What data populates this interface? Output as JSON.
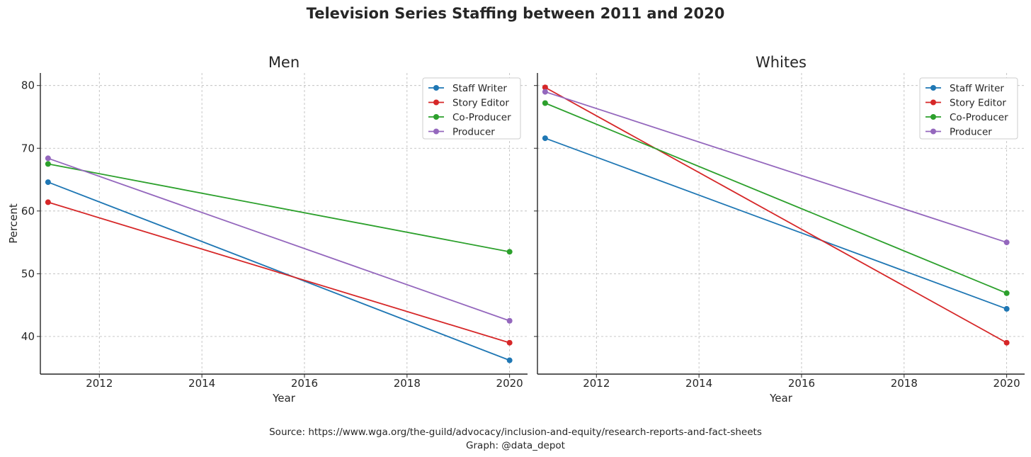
{
  "suptitle": "Television Series Staffing between 2011 and 2020",
  "footer": {
    "source": "Source: https://www.wga.org/the-guild/advocacy/inclusion-and-equity/research-reports-and-fact-sheets",
    "credit": "Graph: @data_depot"
  },
  "chart_data": [
    {
      "type": "line",
      "title": "Men",
      "xlabel": "Year",
      "ylabel": "Percent",
      "xlim": [
        2010.85,
        2020.35
      ],
      "ylim": [
        34,
        82
      ],
      "xticks": [
        2012,
        2014,
        2016,
        2018,
        2020
      ],
      "yticks": [
        40,
        50,
        60,
        70,
        80
      ],
      "grid": true,
      "legend": "top-right",
      "x": [
        2011,
        2020
      ],
      "series": [
        {
          "name": "Staff Writer",
          "color": "#1f77b4",
          "values": [
            64.6,
            36.2
          ]
        },
        {
          "name": "Story Editor",
          "color": "#d62728",
          "values": [
            61.4,
            39.0
          ]
        },
        {
          "name": "Co-Producer",
          "color": "#2ca02c",
          "values": [
            67.5,
            53.5
          ]
        },
        {
          "name": "Producer",
          "color": "#9467bd",
          "values": [
            68.4,
            42.5
          ]
        }
      ]
    },
    {
      "type": "line",
      "title": "Whites",
      "xlabel": "Year",
      "ylabel": "",
      "xlim": [
        2010.85,
        2020.35
      ],
      "ylim": [
        34,
        82
      ],
      "xticks": [
        2012,
        2014,
        2016,
        2018,
        2020
      ],
      "yticks": [
        40,
        50,
        60,
        70,
        80
      ],
      "grid": true,
      "legend": "top-right",
      "x": [
        2011,
        2020
      ],
      "series": [
        {
          "name": "Staff Writer",
          "color": "#1f77b4",
          "values": [
            71.6,
            44.4
          ]
        },
        {
          "name": "Story Editor",
          "color": "#d62728",
          "values": [
            79.7,
            39.0
          ]
        },
        {
          "name": "Co-Producer",
          "color": "#2ca02c",
          "values": [
            77.2,
            46.9
          ]
        },
        {
          "name": "Producer",
          "color": "#9467bd",
          "values": [
            79.0,
            55.0
          ]
        }
      ]
    }
  ]
}
